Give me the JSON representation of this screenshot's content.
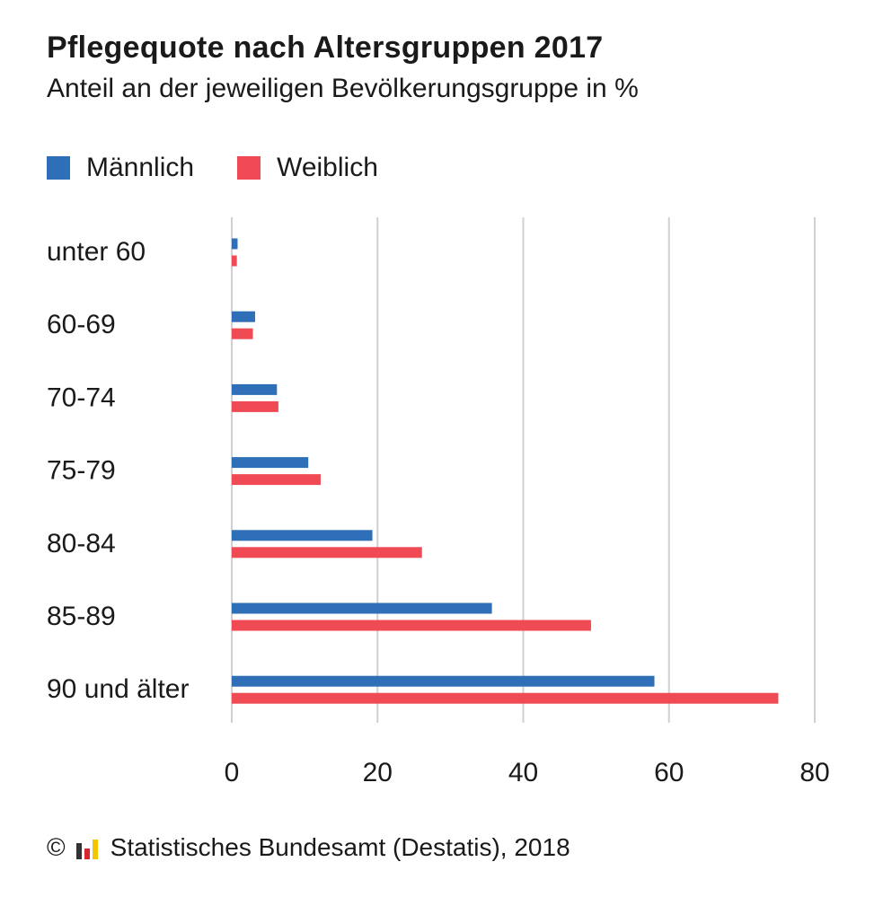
{
  "title": "Pflegequote nach Altersgruppen 2017",
  "subtitle": "Anteil an der jeweiligen Bevölkerungsgruppe in %",
  "legend": {
    "male": "Männlich",
    "female": "Weiblich"
  },
  "colors": {
    "male": "#2e6fb7",
    "female": "#f04b55",
    "grid": "#d0d0d0",
    "logo_dark": "#333333",
    "logo_red": "#d9262e",
    "logo_yellow": "#f3c400"
  },
  "footer": {
    "copyright_symbol": "©",
    "logo_icon": "destatis-logo-icon",
    "source": "Statistisches Bundesamt (Destatis), 2018"
  },
  "chart_data": {
    "type": "bar",
    "orientation": "horizontal",
    "title": "Pflegequote nach Altersgruppen 2017",
    "subtitle": "Anteil an der jeweiligen Bevölkerungsgruppe in %",
    "categories": [
      "unter 60",
      "60-69",
      "70-74",
      "75-79",
      "80-84",
      "85-89",
      "90 und älter"
    ],
    "series": [
      {
        "name": "Männlich",
        "color": "#2e6fb7",
        "values": [
          0.8,
          3.2,
          6.2,
          10.5,
          19.3,
          35.7,
          58.0
        ]
      },
      {
        "name": "Weiblich",
        "color": "#f04b55",
        "values": [
          0.7,
          2.9,
          6.4,
          12.2,
          26.1,
          49.3,
          75.0
        ]
      }
    ],
    "xlim": [
      0,
      80
    ],
    "xticks": [
      0,
      20,
      40,
      60,
      80
    ],
    "grid": true,
    "legend_position": "top-left"
  }
}
